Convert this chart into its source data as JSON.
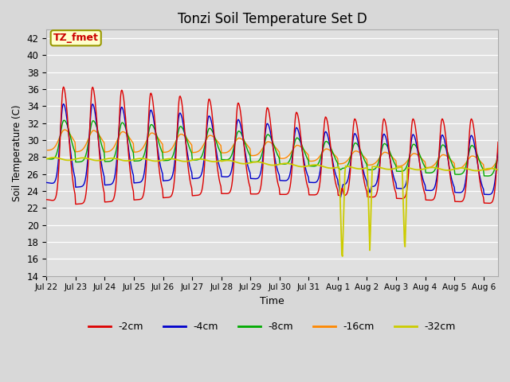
{
  "title": "Tonzi Soil Temperature Set D",
  "xlabel": "Time",
  "ylabel": "Soil Temperature (C)",
  "ylim": [
    14,
    43
  ],
  "xlim_days": 15.5,
  "x_tick_labels": [
    "Jul 22",
    "Jul 23",
    "Jul 24",
    "Jul 25",
    "Jul 26",
    "Jul 27",
    "Jul 28",
    "Jul 29",
    "Jul 30",
    "Jul 31",
    "Aug 1",
    "Aug 2",
    "Aug 3",
    "Aug 4",
    "Aug 5",
    "Aug 6"
  ],
  "legend_labels": [
    "-2cm",
    "-4cm",
    "-8cm",
    "-16cm",
    "-32cm"
  ],
  "legend_colors": [
    "#dd0000",
    "#0000cc",
    "#00aa00",
    "#ff8800",
    "#cccc00"
  ],
  "series_colors": [
    "#dd0000",
    "#0000cc",
    "#00aa00",
    "#ff8800",
    "#cccc00"
  ],
  "annotation_text": "TZ_fmet",
  "annotation_color": "#cc0000",
  "annotation_bg": "#ffffcc",
  "background_color": "#e0e0e0",
  "grid_color": "#ffffff",
  "title_fontsize": 12,
  "figsize": [
    6.4,
    4.8
  ],
  "dpi": 100
}
